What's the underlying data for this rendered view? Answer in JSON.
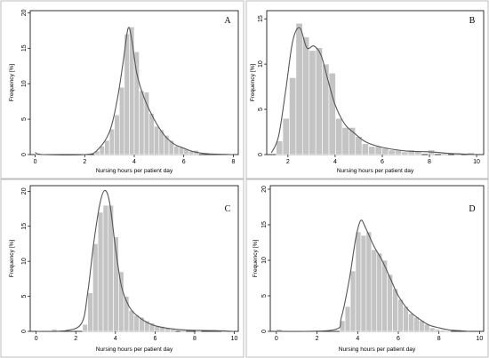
{
  "chart_data": [
    {
      "type": "bar",
      "panel": "A",
      "xlabel": "Nursing hours per patient day",
      "ylabel": "Frequency [%]",
      "xlim": [
        -0.2,
        8.2
      ],
      "ylim": [
        0,
        20.3
      ],
      "xticks": [
        0,
        2,
        4,
        6,
        8
      ],
      "yticks": [
        0,
        5,
        10,
        15,
        20
      ],
      "bin_width": 0.2,
      "bins": [
        [
          0.0,
          0.2
        ],
        [
          2.4,
          0.5
        ],
        [
          2.6,
          1.2
        ],
        [
          2.8,
          2.0
        ],
        [
          3.0,
          3.6
        ],
        [
          3.2,
          5.6
        ],
        [
          3.4,
          9.5
        ],
        [
          3.6,
          17.0
        ],
        [
          3.8,
          18.0
        ],
        [
          4.0,
          14.5
        ],
        [
          4.2,
          9.0
        ],
        [
          4.4,
          8.8
        ],
        [
          4.6,
          5.8
        ],
        [
          4.8,
          4.0
        ],
        [
          5.0,
          3.5
        ],
        [
          5.2,
          2.7
        ],
        [
          5.4,
          2.0
        ],
        [
          5.6,
          1.2
        ],
        [
          5.8,
          1.0
        ],
        [
          6.0,
          0.8
        ],
        [
          6.2,
          0.5
        ],
        [
          6.4,
          0.6
        ]
      ],
      "density": [
        [
          0.0,
          0.3
        ],
        [
          0.3,
          0.0
        ],
        [
          2.0,
          0.0
        ],
        [
          2.5,
          0.6
        ],
        [
          3.0,
          3.2
        ],
        [
          3.3,
          7.5
        ],
        [
          3.55,
          13.0
        ],
        [
          3.75,
          17.8
        ],
        [
          3.9,
          16.2
        ],
        [
          4.1,
          11.5
        ],
        [
          4.4,
          8.0
        ],
        [
          4.8,
          5.0
        ],
        [
          5.2,
          2.8
        ],
        [
          5.6,
          1.5
        ],
        [
          6.0,
          0.9
        ],
        [
          6.4,
          0.4
        ],
        [
          7.0,
          0.1
        ],
        [
          8.0,
          0.0
        ]
      ]
    },
    {
      "type": "bar",
      "panel": "B",
      "xlabel": "Nursing hours per patient day",
      "ylabel": "Frequency [%]",
      "xlim": [
        1.1,
        10.3
      ],
      "ylim": [
        0,
        15.9
      ],
      "xticks": [
        2,
        4,
        6,
        8,
        10
      ],
      "yticks": [
        0,
        5,
        10,
        15
      ],
      "bin_width": 0.28,
      "bins": [
        [
          1.5,
          1.5
        ],
        [
          1.78,
          4.0
        ],
        [
          2.06,
          8.5
        ],
        [
          2.34,
          14.5
        ],
        [
          2.62,
          13.0
        ],
        [
          2.9,
          11.5
        ],
        [
          3.18,
          11.8
        ],
        [
          3.46,
          10.0
        ],
        [
          3.74,
          9.0
        ],
        [
          4.02,
          4.0
        ],
        [
          4.3,
          3.0
        ],
        [
          4.58,
          3.0
        ],
        [
          4.86,
          2.0
        ],
        [
          5.14,
          1.2
        ],
        [
          5.42,
          0.9
        ],
        [
          5.7,
          0.9
        ],
        [
          5.98,
          0.7
        ],
        [
          6.26,
          0.5
        ],
        [
          6.54,
          0.5
        ],
        [
          6.82,
          0.3
        ],
        [
          7.1,
          0.5
        ],
        [
          7.38,
          0.3
        ],
        [
          7.94,
          0.5
        ],
        [
          8.5,
          0.2
        ],
        [
          9.06,
          0.2
        ],
        [
          9.62,
          0.2
        ]
      ],
      "density": [
        [
          1.3,
          0.2
        ],
        [
          1.6,
          2.0
        ],
        [
          1.9,
          7.0
        ],
        [
          2.2,
          12.5
        ],
        [
          2.5,
          14.0
        ],
        [
          2.8,
          11.8
        ],
        [
          3.1,
          12.0
        ],
        [
          3.4,
          11.0
        ],
        [
          3.7,
          8.2
        ],
        [
          4.0,
          5.5
        ],
        [
          4.4,
          3.4
        ],
        [
          4.8,
          2.4
        ],
        [
          5.3,
          1.4
        ],
        [
          6.0,
          0.8
        ],
        [
          7.0,
          0.4
        ],
        [
          8.0,
          0.3
        ],
        [
          9.0,
          0.1
        ],
        [
          10.0,
          0.0
        ]
      ]
    },
    {
      "type": "bar",
      "panel": "C",
      "xlabel": "Nursing hours per patient day",
      "ylabel": "Frequency [%]",
      "xlim": [
        -0.3,
        10.2
      ],
      "ylim": [
        0,
        20.8
      ],
      "xticks": [
        0,
        2,
        4,
        6,
        8,
        10
      ],
      "yticks": [
        0,
        5,
        10,
        15,
        20
      ],
      "bin_width": 0.26,
      "bins": [
        [
          0.78,
          0.3
        ],
        [
          2.34,
          1.0
        ],
        [
          2.6,
          5.5
        ],
        [
          2.86,
          12.5
        ],
        [
          3.12,
          17.0
        ],
        [
          3.38,
          18.0
        ],
        [
          3.64,
          18.0
        ],
        [
          3.9,
          13.5
        ],
        [
          4.16,
          8.5
        ],
        [
          4.42,
          5.0
        ],
        [
          4.68,
          3.0
        ],
        [
          4.94,
          2.3
        ],
        [
          5.2,
          2.0
        ],
        [
          5.46,
          1.5
        ],
        [
          5.72,
          1.2
        ],
        [
          5.98,
          0.8
        ],
        [
          6.24,
          0.7
        ],
        [
          6.5,
          0.5
        ],
        [
          6.76,
          0.3
        ],
        [
          7.28,
          0.3
        ],
        [
          8.06,
          0.2
        ],
        [
          9.36,
          0.2
        ]
      ],
      "density": [
        [
          0.0,
          0.0
        ],
        [
          1.5,
          0.1
        ],
        [
          2.3,
          1.2
        ],
        [
          2.6,
          5.5
        ],
        [
          2.9,
          12.5
        ],
        [
          3.2,
          18.0
        ],
        [
          3.45,
          20.1
        ],
        [
          3.7,
          18.5
        ],
        [
          4.0,
          12.0
        ],
        [
          4.3,
          6.5
        ],
        [
          4.7,
          3.5
        ],
        [
          5.2,
          2.0
        ],
        [
          5.8,
          1.0
        ],
        [
          6.5,
          0.5
        ],
        [
          7.5,
          0.2
        ],
        [
          9.0,
          0.1
        ],
        [
          10.0,
          0.0
        ]
      ]
    },
    {
      "type": "bar",
      "panel": "D",
      "xlabel": "Nursing hours per patient day",
      "ylabel": "Frequency [%]",
      "xlim": [
        -0.3,
        10.2
      ],
      "ylim": [
        0,
        20.5
      ],
      "xticks": [
        0,
        2,
        4,
        6,
        8,
        10
      ],
      "yticks": [
        0,
        5,
        10,
        15,
        20
      ],
      "bin_width": 0.26,
      "bins": [
        [
          0.0,
          0.3
        ],
        [
          3.12,
          1.5
        ],
        [
          3.38,
          3.5
        ],
        [
          3.64,
          8.5
        ],
        [
          3.9,
          14.0
        ],
        [
          4.16,
          13.5
        ],
        [
          4.42,
          14.0
        ],
        [
          4.68,
          11.5
        ],
        [
          4.94,
          11.0
        ],
        [
          5.2,
          10.0
        ],
        [
          5.46,
          8.0
        ],
        [
          5.72,
          6.0
        ],
        [
          5.98,
          4.5
        ],
        [
          6.24,
          3.5
        ],
        [
          6.5,
          2.5
        ],
        [
          6.76,
          2.0
        ],
        [
          7.02,
          1.5
        ],
        [
          7.28,
          1.0
        ],
        [
          7.54,
          0.5
        ],
        [
          7.8,
          0.3
        ],
        [
          8.06,
          0.2
        ],
        [
          8.32,
          0.1
        ]
      ],
      "density": [
        [
          0.0,
          0.0
        ],
        [
          2.8,
          0.2
        ],
        [
          3.2,
          2.0
        ],
        [
          3.6,
          7.5
        ],
        [
          3.9,
          13.0
        ],
        [
          4.15,
          15.6
        ],
        [
          4.4,
          14.5
        ],
        [
          4.8,
          12.0
        ],
        [
          5.2,
          10.0
        ],
        [
          5.6,
          7.5
        ],
        [
          6.0,
          5.0
        ],
        [
          6.5,
          3.0
        ],
        [
          7.0,
          1.8
        ],
        [
          7.5,
          0.9
        ],
        [
          8.0,
          0.5
        ],
        [
          8.5,
          0.2
        ],
        [
          9.0,
          0.1
        ],
        [
          9.5,
          0.0
        ]
      ]
    }
  ]
}
